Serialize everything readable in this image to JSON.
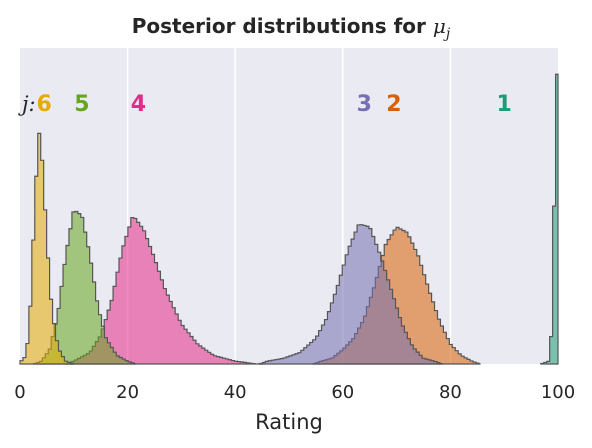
{
  "chart_data": {
    "type": "area",
    "title": "Posterior distributions for",
    "title_math": "μ",
    "title_math_sub": "j",
    "xlabel": "Rating",
    "ylabel": "",
    "xlim": [
      0,
      100
    ],
    "xticks": [
      0,
      20,
      40,
      60,
      80,
      100
    ],
    "grid": true,
    "y_axis_visible": false,
    "legend": "inline labels above peaks",
    "label_prefix": "j:",
    "background": "#eaeaf2",
    "edge_color": "#555555",
    "series": [
      {
        "name": "1",
        "color": "#1b9e77",
        "x": [
          98.3,
          98.6,
          98.9,
          99.2,
          99.5,
          99.8,
          100
        ],
        "y": [
          0.01,
          0.05,
          0.16,
          0.42,
          0.95,
          1.02,
          0.2
        ]
      },
      {
        "name": "2",
        "color": "#d95f02",
        "x": [
          56,
          58,
          60,
          62,
          64,
          66,
          68,
          70,
          72,
          74,
          76,
          78,
          80,
          82,
          84
        ],
        "y": [
          0.01,
          0.02,
          0.05,
          0.09,
          0.16,
          0.28,
          0.42,
          0.48,
          0.46,
          0.38,
          0.26,
          0.15,
          0.07,
          0.03,
          0.01
        ]
      },
      {
        "name": "3",
        "color": "#7570b3",
        "x": [
          46,
          49,
          52,
          55,
          57,
          59,
          61,
          63,
          65,
          67,
          69,
          71,
          73,
          75,
          77
        ],
        "y": [
          0.01,
          0.02,
          0.04,
          0.09,
          0.16,
          0.27,
          0.4,
          0.49,
          0.48,
          0.38,
          0.26,
          0.14,
          0.06,
          0.02,
          0.01
        ]
      },
      {
        "name": "4",
        "color": "#e7298a",
        "x": [
          10,
          13,
          15,
          17,
          19,
          21,
          23,
          25,
          27,
          30,
          33,
          36,
          40,
          44
        ],
        "y": [
          0.01,
          0.04,
          0.1,
          0.22,
          0.4,
          0.52,
          0.47,
          0.37,
          0.26,
          0.14,
          0.07,
          0.03,
          0.01,
          0.0
        ]
      },
      {
        "name": "5",
        "color": "#66a61e",
        "x": [
          4,
          5.5,
          7,
          8.5,
          10,
          11.5,
          13,
          14.5,
          16,
          18,
          20
        ],
        "y": [
          0.01,
          0.05,
          0.17,
          0.38,
          0.54,
          0.52,
          0.38,
          0.2,
          0.09,
          0.03,
          0.01
        ]
      },
      {
        "name": "6",
        "color": "#e6ab02",
        "x": [
          1.2,
          2,
          2.8,
          3.5,
          4.2,
          5,
          5.8,
          6.6,
          7.5,
          8.5
        ],
        "y": [
          0.03,
          0.22,
          0.58,
          0.82,
          0.7,
          0.43,
          0.22,
          0.1,
          0.04,
          0.01
        ]
      }
    ]
  }
}
